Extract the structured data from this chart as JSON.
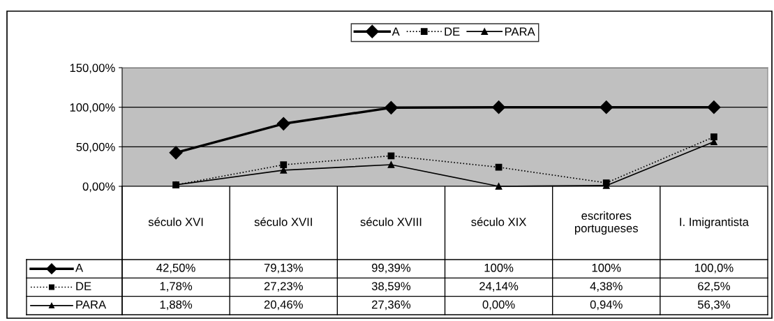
{
  "chart_data": {
    "type": "line",
    "categories": [
      "século XVI",
      "século XVII",
      "século XVIII",
      "século XIX",
      "escritores\nportugueses",
      "I. Imigrantista"
    ],
    "series": [
      {
        "name": "A",
        "color": "#000000",
        "marker": "diamond",
        "line_style": "solid",
        "values": [
          42.5,
          79.13,
          99.39,
          100,
          100,
          100
        ],
        "value_labels": [
          "42,50%",
          "79,13%",
          "99,39%",
          "100%",
          "100%",
          "100,0%"
        ]
      },
      {
        "name": "DE",
        "color": "#000000",
        "marker": "square",
        "line_style": "dotted",
        "values": [
          1.78,
          27.23,
          38.59,
          24.14,
          4.38,
          62.5
        ],
        "value_labels": [
          "1,78%",
          "27,23%",
          "38,59%",
          "24,14%",
          "4,38%",
          "62,5%"
        ]
      },
      {
        "name": "PARA",
        "color": "#000000",
        "marker": "triangle",
        "line_style": "solid",
        "values": [
          1.88,
          20.46,
          27.36,
          0,
          0.94,
          56.3
        ],
        "value_labels": [
          "1,88%",
          "20,46%",
          "27,36%",
          "0,00%",
          "0,94%",
          "56,3%"
        ]
      }
    ],
    "ylim": [
      0,
      150
    ],
    "yticks": [
      {
        "value": 0,
        "label": "0,00%"
      },
      {
        "value": 50,
        "label": "50,00%"
      },
      {
        "value": 100,
        "label": "100,00%"
      },
      {
        "value": 150,
        "label": "150,00%"
      }
    ],
    "grid": "y",
    "legend": "top"
  }
}
